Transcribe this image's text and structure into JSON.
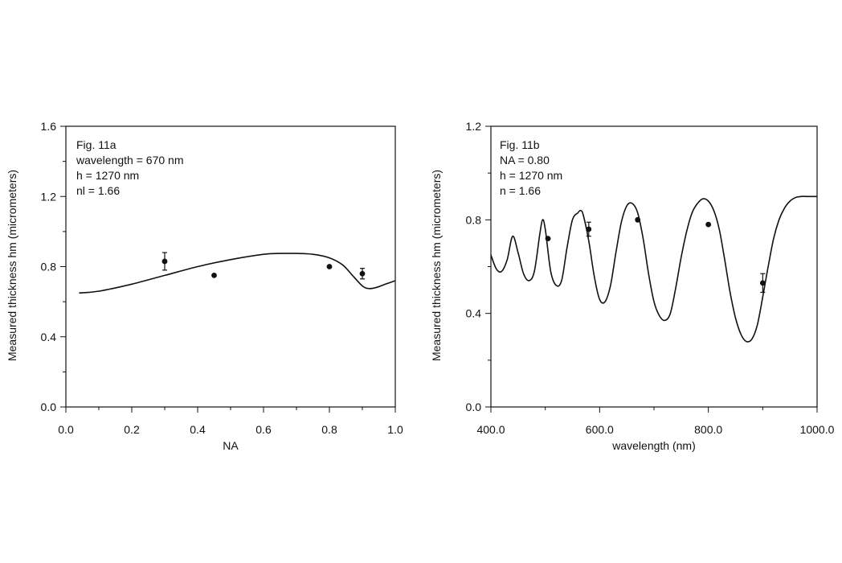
{
  "chart_data": [
    {
      "type": "line",
      "annotations": [
        "Fig. 11a",
        "wavelength = 670 nm",
        "h = 1270 nm",
        "nl = 1.66"
      ],
      "xlabel": "NA",
      "ylabel": "Measured thickness hm   (micrometers)",
      "xlim": [
        0.0,
        1.0
      ],
      "ylim": [
        0.0,
        1.6
      ],
      "x_ticks": [
        0.0,
        0.2,
        0.4,
        0.6,
        0.8,
        1.0
      ],
      "x_tick_labels": [
        "0.0",
        "0.2",
        "0.4",
        "0.6",
        "0.8",
        "1.0"
      ],
      "y_ticks": [
        0.0,
        0.4,
        0.8,
        1.2,
        1.6
      ],
      "y_tick_labels": [
        "0.0",
        "0.4",
        "0.8",
        "1.2",
        "1.6"
      ],
      "curve": {
        "x": [
          0.04,
          0.1,
          0.2,
          0.3,
          0.4,
          0.5,
          0.6,
          0.65,
          0.7,
          0.75,
          0.8,
          0.84,
          0.87,
          0.9,
          0.92,
          0.94,
          0.97,
          1.0
        ],
        "y": [
          0.65,
          0.66,
          0.7,
          0.75,
          0.8,
          0.84,
          0.87,
          0.875,
          0.875,
          0.87,
          0.85,
          0.81,
          0.75,
          0.69,
          0.675,
          0.68,
          0.7,
          0.72
        ]
      },
      "points": [
        {
          "x": 0.3,
          "y": 0.83,
          "err": 0.05
        },
        {
          "x": 0.45,
          "y": 0.75,
          "err": 0
        },
        {
          "x": 0.8,
          "y": 0.8,
          "err": 0
        },
        {
          "x": 0.9,
          "y": 0.76,
          "err": 0.03
        }
      ],
      "grid": false
    },
    {
      "type": "line",
      "annotations": [
        "Fig. 11b",
        "NA = 0.80",
        "h = 1270 nm",
        "n = 1.66"
      ],
      "xlabel": "wavelength (nm)",
      "ylabel": "Measured thickness hm   (micrometers)",
      "xlim": [
        400.0,
        1000.0
      ],
      "ylim": [
        0.0,
        1.2
      ],
      "x_ticks": [
        400.0,
        600.0,
        800.0,
        1000.0
      ],
      "x_tick_labels": [
        "400.0",
        "600.0",
        "800.0",
        "1000.0"
      ],
      "y_ticks": [
        0.0,
        0.4,
        0.8,
        1.2
      ],
      "y_tick_labels": [
        "0.0",
        "0.4",
        "0.8",
        "1.2"
      ],
      "curve": {
        "x": [
          400,
          410,
          420,
          430,
          440,
          450,
          460,
          470,
          480,
          490,
          495,
          500,
          510,
          520,
          530,
          540,
          550,
          560,
          565,
          570,
          580,
          590,
          600,
          610,
          620,
          630,
          640,
          650,
          660,
          670,
          680,
          690,
          700,
          710,
          720,
          730,
          740,
          750,
          760,
          770,
          780,
          790,
          800,
          810,
          820,
          830,
          840,
          850,
          860,
          870,
          880,
          890,
          900,
          910,
          920,
          930,
          940,
          950,
          960,
          970,
          980,
          990,
          1000
        ],
        "y": [
          0.65,
          0.59,
          0.58,
          0.63,
          0.73,
          0.66,
          0.57,
          0.54,
          0.58,
          0.74,
          0.8,
          0.76,
          0.58,
          0.52,
          0.54,
          0.68,
          0.8,
          0.83,
          0.84,
          0.82,
          0.71,
          0.56,
          0.46,
          0.45,
          0.52,
          0.66,
          0.79,
          0.86,
          0.87,
          0.83,
          0.72,
          0.57,
          0.45,
          0.39,
          0.37,
          0.4,
          0.51,
          0.64,
          0.75,
          0.83,
          0.87,
          0.89,
          0.88,
          0.84,
          0.76,
          0.63,
          0.49,
          0.38,
          0.31,
          0.28,
          0.29,
          0.35,
          0.47,
          0.6,
          0.72,
          0.8,
          0.85,
          0.88,
          0.895,
          0.9,
          0.9,
          0.9,
          0.9
        ]
      },
      "points": [
        {
          "x": 505,
          "y": 0.72,
          "err": 0
        },
        {
          "x": 580,
          "y": 0.76,
          "err": 0.03
        },
        {
          "x": 670,
          "y": 0.8,
          "err": 0
        },
        {
          "x": 800,
          "y": 0.78,
          "err": 0
        },
        {
          "x": 900,
          "y": 0.53,
          "err": 0.04
        }
      ],
      "grid": false
    }
  ]
}
